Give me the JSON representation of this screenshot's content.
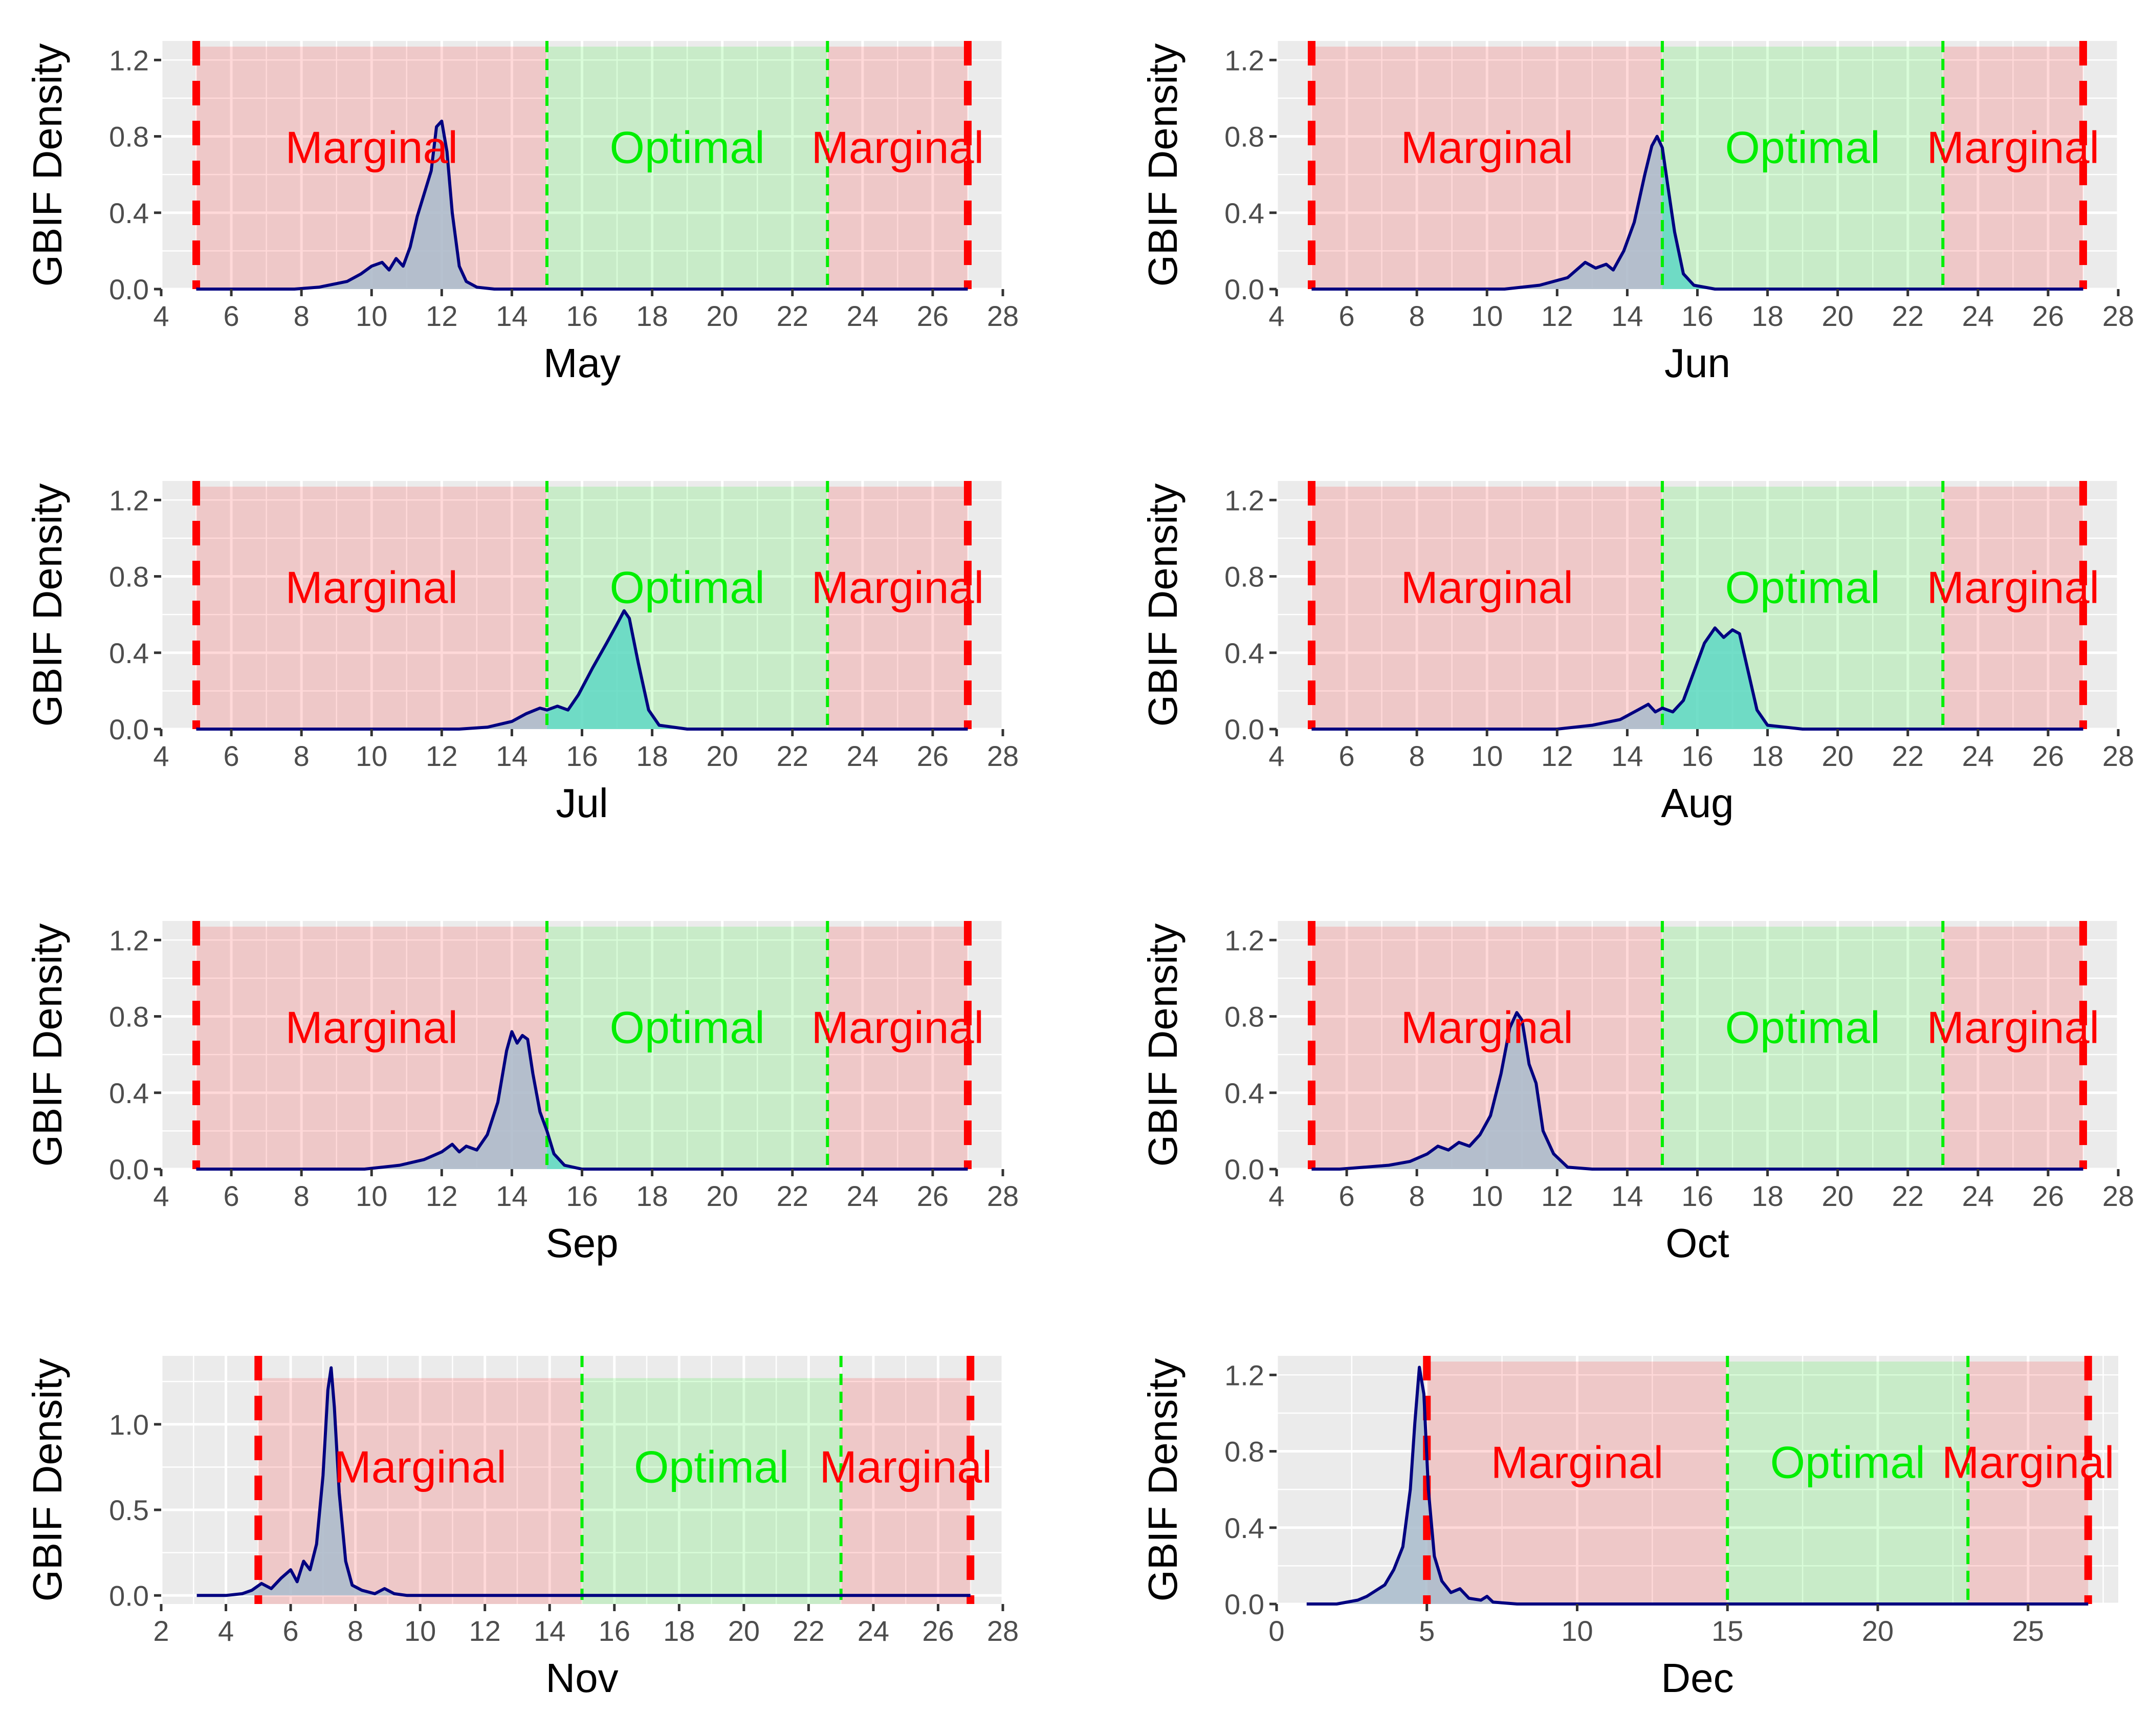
{
  "chart_data": [
    {
      "type": "area",
      "xlabel": "May",
      "ylabel": "GBIF Density",
      "xlim": [
        4,
        28
      ],
      "ylim": [
        0,
        1.3
      ],
      "xticks": [
        "4",
        "6",
        "8",
        "10",
        "12",
        "14",
        "16",
        "18",
        "20",
        "22",
        "24",
        "26",
        "28"
      ],
      "yticks": [
        "0.0",
        "0.4",
        "0.8",
        "1.2"
      ],
      "thresholds": {
        "marginal_min": 5,
        "optimal_min": 15,
        "optimal_max": 23,
        "marginal_max": 27
      },
      "zones": [
        {
          "label": "Marginal",
          "from": 5,
          "to": 15,
          "color": "#ff0000"
        },
        {
          "label": "Optimal",
          "from": 15,
          "to": 23,
          "color": "#00ee00"
        },
        {
          "label": "Marginal",
          "from": 23,
          "to": 27,
          "color": "#ff0000"
        }
      ],
      "density": {
        "x": [
          5,
          7.8,
          8.5,
          9.3,
          9.7,
          10.0,
          10.3,
          10.5,
          10.7,
          10.9,
          11.1,
          11.3,
          11.5,
          11.7,
          11.85,
          12.0,
          12.15,
          12.3,
          12.5,
          12.7,
          13.0,
          13.5,
          14.0,
          27
        ],
        "y": [
          0,
          0,
          0.01,
          0.04,
          0.08,
          0.12,
          0.14,
          0.1,
          0.16,
          0.12,
          0.22,
          0.38,
          0.5,
          0.62,
          0.85,
          0.88,
          0.72,
          0.4,
          0.12,
          0.04,
          0.01,
          0,
          0,
          0
        ]
      }
    },
    {
      "type": "area",
      "xlabel": "Jun",
      "ylabel": "GBIF Density",
      "xlim": [
        4,
        28
      ],
      "ylim": [
        0,
        1.3
      ],
      "xticks": [
        "4",
        "6",
        "8",
        "10",
        "12",
        "14",
        "16",
        "18",
        "20",
        "22",
        "24",
        "26",
        "28"
      ],
      "yticks": [
        "0.0",
        "0.4",
        "0.8",
        "1.2"
      ],
      "thresholds": {
        "marginal_min": 5,
        "optimal_min": 15,
        "optimal_max": 23,
        "marginal_max": 27
      },
      "zones": [
        {
          "label": "Marginal",
          "from": 5,
          "to": 15,
          "color": "#ff0000"
        },
        {
          "label": "Optimal",
          "from": 15,
          "to": 23,
          "color": "#00ee00"
        },
        {
          "label": "Marginal",
          "from": 23,
          "to": 27,
          "color": "#ff0000"
        }
      ],
      "density": {
        "x": [
          5,
          10.5,
          11.5,
          12.3,
          12.8,
          13.1,
          13.4,
          13.6,
          13.9,
          14.2,
          14.5,
          14.7,
          14.85,
          15.0,
          15.15,
          15.35,
          15.6,
          15.9,
          16.5,
          27
        ],
        "y": [
          0,
          0,
          0.02,
          0.06,
          0.14,
          0.11,
          0.13,
          0.1,
          0.2,
          0.35,
          0.6,
          0.75,
          0.8,
          0.74,
          0.55,
          0.3,
          0.08,
          0.02,
          0,
          0
        ]
      }
    },
    {
      "type": "area",
      "xlabel": "Jul",
      "ylabel": "GBIF Density",
      "xlim": [
        4,
        28
      ],
      "ylim": [
        0,
        1.3
      ],
      "xticks": [
        "4",
        "6",
        "8",
        "10",
        "12",
        "14",
        "16",
        "18",
        "20",
        "22",
        "24",
        "26",
        "28"
      ],
      "yticks": [
        "0.0",
        "0.4",
        "0.8",
        "1.2"
      ],
      "thresholds": {
        "marginal_min": 5,
        "optimal_min": 15,
        "optimal_max": 23,
        "marginal_max": 27
      },
      "zones": [
        {
          "label": "Marginal",
          "from": 5,
          "to": 15,
          "color": "#ff0000"
        },
        {
          "label": "Optimal",
          "from": 15,
          "to": 23,
          "color": "#00ee00"
        },
        {
          "label": "Marginal",
          "from": 23,
          "to": 27,
          "color": "#ff0000"
        }
      ],
      "density": {
        "x": [
          5,
          12.5,
          13.3,
          14.0,
          14.4,
          14.8,
          15.0,
          15.3,
          15.6,
          15.9,
          16.3,
          16.7,
          17.0,
          17.2,
          17.35,
          17.6,
          17.9,
          18.2,
          19.0,
          27
        ],
        "y": [
          0,
          0,
          0.01,
          0.04,
          0.08,
          0.11,
          0.1,
          0.12,
          0.1,
          0.18,
          0.32,
          0.45,
          0.55,
          0.62,
          0.58,
          0.35,
          0.1,
          0.02,
          0,
          0
        ]
      }
    },
    {
      "type": "area",
      "xlabel": "Aug",
      "ylabel": "GBIF Density",
      "xlim": [
        4,
        28
      ],
      "ylim": [
        0,
        1.3
      ],
      "xticks": [
        "4",
        "6",
        "8",
        "10",
        "12",
        "14",
        "16",
        "18",
        "20",
        "22",
        "24",
        "26",
        "28"
      ],
      "yticks": [
        "0.0",
        "0.4",
        "0.8",
        "1.2"
      ],
      "thresholds": {
        "marginal_min": 5,
        "optimal_min": 15,
        "optimal_max": 23,
        "marginal_max": 27
      },
      "zones": [
        {
          "label": "Marginal",
          "from": 5,
          "to": 15,
          "color": "#ff0000"
        },
        {
          "label": "Optimal",
          "from": 15,
          "to": 23,
          "color": "#00ee00"
        },
        {
          "label": "Marginal",
          "from": 23,
          "to": 27,
          "color": "#ff0000"
        }
      ],
      "density": {
        "x": [
          5,
          12.0,
          13.0,
          13.8,
          14.3,
          14.6,
          14.8,
          15.0,
          15.3,
          15.6,
          15.9,
          16.2,
          16.5,
          16.75,
          17.0,
          17.2,
          17.45,
          17.7,
          18.0,
          19.0,
          27
        ],
        "y": [
          0,
          0,
          0.02,
          0.05,
          0.1,
          0.13,
          0.09,
          0.11,
          0.09,
          0.15,
          0.3,
          0.45,
          0.53,
          0.48,
          0.52,
          0.5,
          0.3,
          0.1,
          0.02,
          0,
          0
        ]
      }
    },
    {
      "type": "area",
      "xlabel": "Sep",
      "ylabel": "GBIF Density",
      "xlim": [
        4,
        28
      ],
      "ylim": [
        0,
        1.3
      ],
      "xticks": [
        "4",
        "6",
        "8",
        "10",
        "12",
        "14",
        "16",
        "18",
        "20",
        "22",
        "24",
        "26",
        "28"
      ],
      "yticks": [
        "0.0",
        "0.4",
        "0.8",
        "1.2"
      ],
      "thresholds": {
        "marginal_min": 5,
        "optimal_min": 15,
        "optimal_max": 23,
        "marginal_max": 27
      },
      "zones": [
        {
          "label": "Marginal",
          "from": 5,
          "to": 15,
          "color": "#ff0000"
        },
        {
          "label": "Optimal",
          "from": 15,
          "to": 23,
          "color": "#00ee00"
        },
        {
          "label": "Marginal",
          "from": 23,
          "to": 27,
          "color": "#ff0000"
        }
      ],
      "density": {
        "x": [
          5,
          9.8,
          10.8,
          11.5,
          12.0,
          12.3,
          12.5,
          12.7,
          13.0,
          13.3,
          13.6,
          13.85,
          14.0,
          14.15,
          14.3,
          14.45,
          14.6,
          14.8,
          15.0,
          15.2,
          15.5,
          16.0,
          27
        ],
        "y": [
          0,
          0,
          0.02,
          0.05,
          0.09,
          0.13,
          0.09,
          0.12,
          0.1,
          0.18,
          0.35,
          0.62,
          0.72,
          0.66,
          0.7,
          0.68,
          0.5,
          0.3,
          0.2,
          0.08,
          0.02,
          0,
          0
        ]
      }
    },
    {
      "type": "area",
      "xlabel": "Oct",
      "ylabel": "GBIF Density",
      "xlim": [
        4,
        28
      ],
      "ylim": [
        0,
        1.3
      ],
      "xticks": [
        "4",
        "6",
        "8",
        "10",
        "12",
        "14",
        "16",
        "18",
        "20",
        "22",
        "24",
        "26",
        "28"
      ],
      "yticks": [
        "0.0",
        "0.4",
        "0.8",
        "1.2"
      ],
      "thresholds": {
        "marginal_min": 5,
        "optimal_min": 15,
        "optimal_max": 23,
        "marginal_max": 27
      },
      "zones": [
        {
          "label": "Marginal",
          "from": 5,
          "to": 15,
          "color": "#ff0000"
        },
        {
          "label": "Optimal",
          "from": 15,
          "to": 23,
          "color": "#00ee00"
        },
        {
          "label": "Marginal",
          "from": 23,
          "to": 27,
          "color": "#ff0000"
        }
      ],
      "density": {
        "x": [
          5,
          5.8,
          6.5,
          7.2,
          7.8,
          8.3,
          8.6,
          8.9,
          9.2,
          9.5,
          9.8,
          10.1,
          10.4,
          10.65,
          10.85,
          11.0,
          11.2,
          11.4,
          11.6,
          11.9,
          12.3,
          13.0,
          27
        ],
        "y": [
          0,
          0,
          0.01,
          0.02,
          0.04,
          0.08,
          0.12,
          0.1,
          0.14,
          0.12,
          0.18,
          0.28,
          0.5,
          0.74,
          0.82,
          0.78,
          0.55,
          0.45,
          0.2,
          0.08,
          0.01,
          0,
          0
        ]
      }
    },
    {
      "type": "area",
      "xlabel": "Nov",
      "ylabel": "GBIF Density",
      "xlim": [
        2,
        28
      ],
      "ylim": [
        -0.05,
        1.4
      ],
      "xticks": [
        "2",
        "4",
        "6",
        "8",
        "10",
        "12",
        "14",
        "16",
        "18",
        "20",
        "22",
        "24",
        "26",
        "28"
      ],
      "yticks": [
        "0.0",
        "0.5",
        "1.0"
      ],
      "thresholds": {
        "marginal_min": 5,
        "optimal_min": 15,
        "optimal_max": 23,
        "marginal_max": 27
      },
      "zones": [
        {
          "label": "Marginal",
          "from": 5,
          "to": 15,
          "color": "#ff0000"
        },
        {
          "label": "Optimal",
          "from": 15,
          "to": 23,
          "color": "#00ee00"
        },
        {
          "label": "Marginal",
          "from": 23,
          "to": 27,
          "color": "#ff0000"
        }
      ],
      "density": {
        "x": [
          3.1,
          4.0,
          4.5,
          4.8,
          5.1,
          5.4,
          5.7,
          6.0,
          6.2,
          6.4,
          6.6,
          6.8,
          7.0,
          7.15,
          7.25,
          7.35,
          7.5,
          7.7,
          7.9,
          8.2,
          8.6,
          8.9,
          9.2,
          9.6,
          27
        ],
        "y": [
          0,
          0,
          0.01,
          0.03,
          0.07,
          0.04,
          0.1,
          0.15,
          0.08,
          0.2,
          0.15,
          0.3,
          0.7,
          1.2,
          1.33,
          1.1,
          0.6,
          0.2,
          0.06,
          0.03,
          0.01,
          0.04,
          0.01,
          0,
          0
        ]
      }
    },
    {
      "type": "area",
      "xlabel": "Dec",
      "ylabel": "GBIF Density",
      "xlim": [
        0,
        28
      ],
      "ylim": [
        0,
        1.3
      ],
      "xticks": [
        "0",
        "5",
        "10",
        "15",
        "20",
        "25"
      ],
      "yticks": [
        "0.0",
        "0.4",
        "0.8",
        "1.2"
      ],
      "thresholds": {
        "marginal_min": 5,
        "optimal_min": 15,
        "optimal_max": 23,
        "marginal_max": 27
      },
      "zones": [
        {
          "label": "Marginal",
          "from": 5,
          "to": 15,
          "color": "#ff0000"
        },
        {
          "label": "Optimal",
          "from": 15,
          "to": 23,
          "color": "#00ee00"
        },
        {
          "label": "Marginal",
          "from": 23,
          "to": 27,
          "color": "#ff0000"
        }
      ],
      "density": {
        "x": [
          1.0,
          2.0,
          2.7,
          3.0,
          3.3,
          3.6,
          3.9,
          4.2,
          4.45,
          4.6,
          4.75,
          4.9,
          5.05,
          5.25,
          5.5,
          5.8,
          6.1,
          6.4,
          6.8,
          7.0,
          7.2,
          8.0,
          27
        ],
        "y": [
          0,
          0,
          0.02,
          0.04,
          0.07,
          0.1,
          0.18,
          0.3,
          0.6,
          0.95,
          1.24,
          1.1,
          0.6,
          0.25,
          0.12,
          0.06,
          0.08,
          0.03,
          0.02,
          0.04,
          0.01,
          0,
          0
        ]
      }
    }
  ],
  "style": {
    "panel_bg": "#ebebeb",
    "grid": "#ffffff",
    "marginal_fill": "#ff0000",
    "optimal_fill": "#00ee00",
    "marginal_line": "#ff0000",
    "optimal_line": "#00ee00",
    "density_line": "#000080",
    "density_fill_outside": "#a9bccd",
    "density_fill_optimal": "#5fd8c4",
    "tick_text": "#4d4d4d",
    "label_text": "#000000"
  }
}
